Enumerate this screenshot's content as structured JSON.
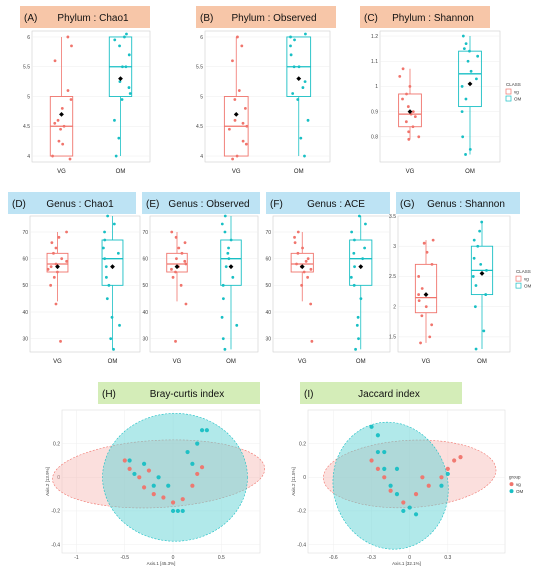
{
  "colors": {
    "vg": "#F0746C",
    "om": "#18BFC4",
    "mean": "#000000",
    "header_phylum": "#F7C6A8",
    "header_genus": "#BDE3F4",
    "header_pcoa": "#D4EDB8",
    "ellipse_vg": "#F6B9B4",
    "ellipse_om": "#63D3D5"
  },
  "legends": {
    "class_title": "CLASS",
    "class_items": [
      "vg",
      "OM"
    ],
    "group_title": "group",
    "group_items": [
      "vg",
      "OM"
    ]
  },
  "chart_data": [
    {
      "type": "box",
      "panel": "(A)",
      "title": "Phylum : Chao1",
      "categories": [
        "VG",
        "OM"
      ],
      "yticks": [
        4.0,
        4.5,
        5.0,
        5.5,
        6.0
      ],
      "ylim": [
        3.9,
        6.1
      ],
      "boxes": [
        {
          "name": "VG",
          "min": 4.0,
          "q1": 4.0,
          "median": 4.5,
          "q3": 5.0,
          "max": 6.0,
          "mean": 4.7,
          "points": [
            3.95,
            4.0,
            4.2,
            4.25,
            4.45,
            4.5,
            4.55,
            4.6,
            4.8,
            4.95,
            5.1,
            5.6,
            5.85,
            6.0
          ]
        },
        {
          "name": "OM",
          "min": 4.0,
          "q1": 5.0,
          "median": 5.5,
          "q3": 6.0,
          "max": 6.0,
          "mean": 5.3,
          "points": [
            4.0,
            4.3,
            4.6,
            4.95,
            5.05,
            5.15,
            5.25,
            5.5,
            5.5,
            5.7,
            5.85,
            5.95,
            6.0,
            6.05
          ]
        }
      ]
    },
    {
      "type": "box",
      "panel": "(B)",
      "title": "Phylum : Observed",
      "categories": [
        "VG",
        "OM"
      ],
      "yticks": [
        4.0,
        4.5,
        5.0,
        5.5,
        6.0
      ],
      "ylim": [
        3.9,
        6.1
      ],
      "boxes": [
        {
          "name": "VG",
          "min": 4.0,
          "q1": 4.0,
          "median": 4.5,
          "q3": 5.0,
          "max": 6.0,
          "mean": 4.7,
          "points": [
            3.95,
            4.0,
            4.2,
            4.25,
            4.45,
            4.5,
            4.55,
            4.6,
            4.8,
            4.95,
            5.1,
            5.6,
            5.85,
            6.0
          ]
        },
        {
          "name": "OM",
          "min": 4.0,
          "q1": 5.0,
          "median": 5.5,
          "q3": 6.0,
          "max": 6.0,
          "mean": 5.3,
          "points": [
            4.0,
            4.3,
            4.6,
            4.95,
            5.05,
            5.15,
            5.25,
            5.5,
            5.5,
            5.7,
            5.85,
            5.95,
            6.0,
            6.05
          ]
        }
      ]
    },
    {
      "type": "box",
      "panel": "(C)",
      "title": "Phylum : Shannon",
      "categories": [
        "VG",
        "OM"
      ],
      "yticks": [
        0.8,
        0.9,
        1.0,
        1.1,
        1.2
      ],
      "ylim": [
        0.7,
        1.22
      ],
      "boxes": [
        {
          "name": "VG",
          "min": 0.79,
          "q1": 0.84,
          "median": 0.89,
          "q3": 0.97,
          "max": 1.07,
          "mean": 0.9,
          "points": [
            0.79,
            0.8,
            0.82,
            0.84,
            0.86,
            0.88,
            0.89,
            0.9,
            0.92,
            0.95,
            0.97,
            1.0,
            1.04,
            1.07
          ]
        },
        {
          "name": "OM",
          "min": 0.73,
          "q1": 0.92,
          "median": 1.05,
          "q3": 1.14,
          "max": 1.2,
          "mean": 1.01,
          "points": [
            0.73,
            0.75,
            0.8,
            0.9,
            0.95,
            1.0,
            1.03,
            1.06,
            1.1,
            1.12,
            1.14,
            1.15,
            1.17,
            1.2
          ]
        }
      ]
    },
    {
      "type": "box",
      "panel": "(D)",
      "title": "Genus : Chao1",
      "categories": [
        "VG",
        "OM"
      ],
      "yticks": [
        30,
        40,
        50,
        60,
        70
      ],
      "ylim": [
        25,
        76
      ],
      "boxes": [
        {
          "name": "VG",
          "min": 44,
          "q1": 55,
          "median": 58,
          "q3": 62,
          "max": 70,
          "mean": 57,
          "points": [
            29,
            43,
            50,
            53,
            55,
            56,
            57,
            58,
            59,
            60,
            62,
            64,
            66,
            68,
            70
          ]
        },
        {
          "name": "OM",
          "min": 26,
          "q1": 50,
          "median": 60,
          "q3": 67,
          "max": 76,
          "mean": 57,
          "points": [
            26,
            30,
            35,
            38,
            45,
            50,
            53,
            57,
            60,
            62,
            64,
            67,
            70,
            73,
            76
          ]
        }
      ]
    },
    {
      "type": "box",
      "panel": "(E)",
      "title": "Genus : Observed",
      "categories": [
        "VG",
        "OM"
      ],
      "yticks": [
        30,
        40,
        50,
        60,
        70
      ],
      "ylim": [
        25,
        76
      ],
      "boxes": [
        {
          "name": "VG",
          "min": 44,
          "q1": 55,
          "median": 58,
          "q3": 62,
          "max": 70,
          "mean": 57,
          "points": [
            29,
            43,
            50,
            53,
            55,
            56,
            57,
            58,
            59,
            60,
            62,
            64,
            66,
            68,
            70
          ]
        },
        {
          "name": "OM",
          "min": 26,
          "q1": 50,
          "median": 60,
          "q3": 67,
          "max": 76,
          "mean": 57,
          "points": [
            26,
            30,
            35,
            38,
            45,
            50,
            53,
            57,
            60,
            62,
            64,
            67,
            70,
            73,
            76
          ]
        }
      ]
    },
    {
      "type": "box",
      "panel": "(F)",
      "title": "Genus : ACE",
      "categories": [
        "VG",
        "OM"
      ],
      "yticks": [
        30,
        40,
        50,
        60,
        70
      ],
      "ylim": [
        25,
        76
      ],
      "boxes": [
        {
          "name": "VG",
          "min": 44,
          "q1": 55,
          "median": 58,
          "q3": 62,
          "max": 70,
          "mean": 57,
          "points": [
            29,
            43,
            50,
            53,
            55,
            56,
            57,
            58,
            59,
            60,
            62,
            64,
            66,
            68,
            70
          ]
        },
        {
          "name": "OM",
          "min": 26,
          "q1": 50,
          "median": 60,
          "q3": 67,
          "max": 76,
          "mean": 57,
          "points": [
            26,
            30,
            35,
            38,
            45,
            50,
            53,
            57,
            60,
            62,
            64,
            67,
            70,
            73,
            76
          ]
        }
      ]
    },
    {
      "type": "box",
      "panel": "(G)",
      "title": "Genus : Shannon",
      "categories": [
        "VG",
        "OM"
      ],
      "yticks": [
        1.5,
        2.0,
        2.5,
        3.0,
        3.5
      ],
      "ylim": [
        1.25,
        3.5
      ],
      "boxes": [
        {
          "name": "VG",
          "min": 1.4,
          "q1": 1.9,
          "median": 2.15,
          "q3": 2.7,
          "max": 3.1,
          "mean": 2.2,
          "points": [
            1.4,
            1.5,
            1.7,
            1.85,
            2.0,
            2.1,
            2.2,
            2.3,
            2.5,
            2.7,
            2.9,
            3.05,
            3.1
          ]
        },
        {
          "name": "OM",
          "min": 1.3,
          "q1": 2.2,
          "median": 2.6,
          "q3": 3.0,
          "max": 3.4,
          "mean": 2.55,
          "points": [
            1.3,
            1.6,
            2.0,
            2.2,
            2.35,
            2.5,
            2.6,
            2.7,
            2.8,
            3.0,
            3.1,
            3.25,
            3.4
          ]
        }
      ]
    },
    {
      "type": "scatter",
      "panel": "(H)",
      "title": "Bray-curtis index",
      "xlabel": "Axis.1  [45.3%]",
      "ylabel": "Axis.2  [13.9%]",
      "xticks": [
        -1.0,
        -0.5,
        0.0,
        0.5
      ],
      "yticks": [
        0.2,
        0.0,
        -0.2,
        -0.4
      ],
      "xlim": [
        -1.15,
        0.9
      ],
      "ylim": [
        -0.45,
        0.4
      ],
      "ellipses": [
        {
          "group": "vg",
          "cx": -0.15,
          "cy": 0.02,
          "rx": 1.1,
          "ry": 0.2,
          "angle": -3
        },
        {
          "group": "OM",
          "cx": 0.02,
          "cy": 0.0,
          "rx": 0.75,
          "ry": 0.38,
          "angle": 0
        }
      ],
      "series": [
        {
          "name": "vg",
          "points": [
            [
              -0.5,
              0.1
            ],
            [
              -0.45,
              0.05
            ],
            [
              -0.35,
              0.0
            ],
            [
              -0.3,
              -0.06
            ],
            [
              -0.2,
              -0.1
            ],
            [
              -0.1,
              -0.12
            ],
            [
              0.0,
              -0.15
            ],
            [
              0.1,
              -0.13
            ],
            [
              0.2,
              -0.05
            ],
            [
              0.25,
              0.02
            ],
            [
              0.3,
              0.06
            ],
            [
              -0.25,
              0.04
            ]
          ]
        },
        {
          "name": "OM",
          "points": [
            [
              -0.45,
              0.1
            ],
            [
              -0.4,
              0.02
            ],
            [
              -0.3,
              0.08
            ],
            [
              -0.2,
              -0.05
            ],
            [
              -0.15,
              0.0
            ],
            [
              -0.05,
              -0.05
            ],
            [
              0.05,
              -0.2
            ],
            [
              0.0,
              -0.2
            ],
            [
              0.1,
              -0.2
            ],
            [
              0.2,
              0.08
            ],
            [
              0.25,
              0.2
            ],
            [
              0.3,
              0.28
            ],
            [
              0.35,
              0.28
            ],
            [
              0.15,
              0.15
            ]
          ]
        }
      ]
    },
    {
      "type": "scatter",
      "panel": "(I)",
      "title": "Jaccard index",
      "xlabel": "Axis.1  [32.1%]",
      "ylabel": "Axis.2  [11.5%]",
      "xticks": [
        -0.6,
        -0.3,
        0.0,
        0.3
      ],
      "yticks": [
        0.2,
        0.0,
        -0.2,
        -0.4
      ],
      "xlim": [
        -0.8,
        0.75
      ],
      "ylim": [
        -0.45,
        0.4
      ],
      "ellipses": [
        {
          "group": "vg",
          "cx": 0.0,
          "cy": 0.02,
          "rx": 0.68,
          "ry": 0.2,
          "angle": -3
        },
        {
          "group": "OM",
          "cx": -0.15,
          "cy": -0.05,
          "rx": 0.45,
          "ry": 0.38,
          "angle": -15
        }
      ],
      "series": [
        {
          "name": "vg",
          "points": [
            [
              -0.3,
              0.1
            ],
            [
              -0.25,
              0.05
            ],
            [
              -0.2,
              0.0
            ],
            [
              -0.15,
              -0.08
            ],
            [
              -0.05,
              -0.15
            ],
            [
              0.05,
              -0.1
            ],
            [
              0.15,
              -0.05
            ],
            [
              0.25,
              0.0
            ],
            [
              0.3,
              0.05
            ],
            [
              0.35,
              0.1
            ],
            [
              0.4,
              0.12
            ],
            [
              0.1,
              0.0
            ]
          ]
        },
        {
          "name": "OM",
          "points": [
            [
              -0.3,
              0.3
            ],
            [
              -0.25,
              0.25
            ],
            [
              -0.2,
              0.15
            ],
            [
              -0.2,
              0.05
            ],
            [
              -0.15,
              -0.05
            ],
            [
              -0.1,
              -0.1
            ],
            [
              -0.05,
              -0.2
            ],
            [
              0.0,
              -0.18
            ],
            [
              0.05,
              -0.22
            ],
            [
              0.25,
              -0.05
            ],
            [
              0.3,
              0.02
            ],
            [
              -0.1,
              0.05
            ],
            [
              -0.25,
              0.15
            ]
          ]
        }
      ]
    }
  ]
}
